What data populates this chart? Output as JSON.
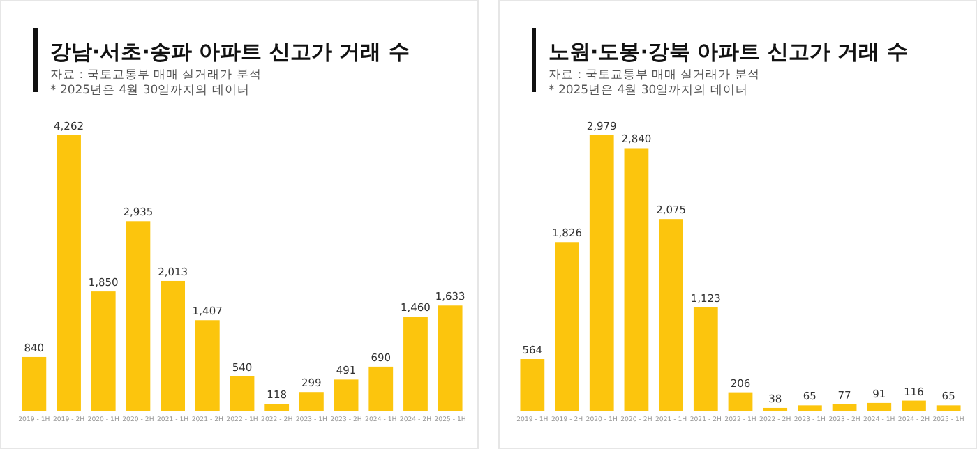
{
  "chart_data": [
    {
      "type": "bar",
      "title": "강남·서초·송파 아파트 신고가 거래 수",
      "subtitle": "자료 : 국토교통부 매매 실거래가 분석",
      "annotations": [
        "* 2025년은 4월 30일까지의 데이터"
      ],
      "categories": [
        "2019 - 1H",
        "2019 - 2H",
        "2020 - 1H",
        "2020 - 2H",
        "2021 - 1H",
        "2021 - 2H",
        "2022 - 1H",
        "2022 - 2H",
        "2023 - 1H",
        "2023 - 2H",
        "2024 - 1H",
        "2024 - 2H",
        "2025 - 1H"
      ],
      "series": [
        {
          "color": "#fcc50d",
          "values": [
            840,
            4262,
            1850,
            2935,
            2013,
            1407,
            540,
            118,
            299,
            491,
            690,
            1460,
            1633
          ],
          "value_labels": [
            "840",
            "4,262",
            "1,850",
            "2,935",
            "2,013",
            "1,407",
            "540",
            "118",
            "299",
            "491",
            "690",
            "1,460",
            "1,633"
          ]
        }
      ]
    },
    {
      "type": "bar",
      "title": "노원·도봉·강북 아파트 신고가 거래 수",
      "subtitle": "자료 : 국토교통부 매매 실거래가 분석",
      "annotations": [
        "* 2025년은 4월 30일까지의 데이터"
      ],
      "categories": [
        "2019 - 1H",
        "2019 - 2H",
        "2020 - 1H",
        "2020 - 2H",
        "2021 - 1H",
        "2021 - 2H",
        "2022 - 1H",
        "2022 - 2H",
        "2023 - 1H",
        "2023 - 2H",
        "2024 - 1H",
        "2024 - 2H",
        "2025 - 1H"
      ],
      "series": [
        {
          "color": "#fcc50d",
          "values": [
            564,
            1826,
            2979,
            2840,
            2075,
            1123,
            206,
            38,
            65,
            77,
            91,
            116,
            65
          ],
          "value_labels": [
            "564",
            "1,826",
            "2,979",
            "2,840",
            "2,075",
            "1,123",
            "206",
            "38",
            "65",
            "77",
            "91",
            "116",
            "65"
          ]
        }
      ]
    }
  ]
}
